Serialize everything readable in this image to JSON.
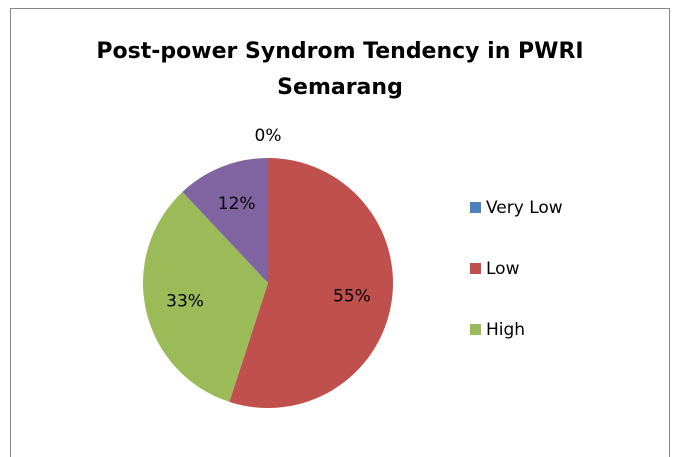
{
  "chart_data": {
    "type": "pie",
    "title": "Post-power Syndrom Tendency in PWRI Semarang",
    "categories": [
      "Very Low",
      "Low",
      "High",
      null
    ],
    "values": [
      0,
      55,
      33,
      12
    ],
    "value_labels": [
      "0%",
      "55%",
      "33%",
      "12%"
    ],
    "colors": [
      "#4f81bd",
      "#c0504d",
      "#9bbb59",
      "#8064a2"
    ],
    "legend": "right"
  }
}
